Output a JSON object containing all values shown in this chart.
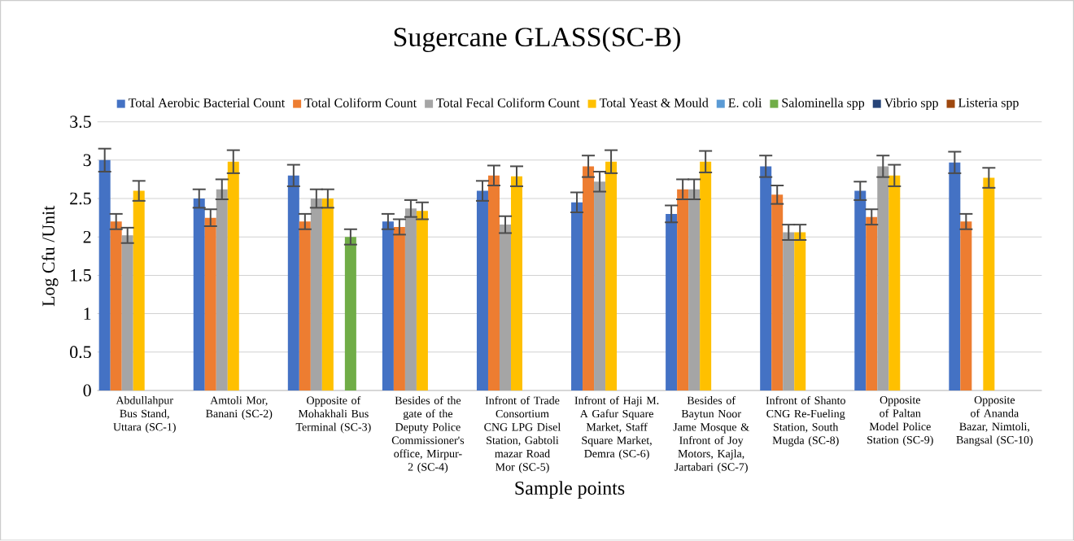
{
  "chart_data": {
    "type": "bar",
    "title": "Sugercane GLASS(SC-B)",
    "xlabel": "Sample points",
    "ylabel": "Log Cfu /Unit",
    "categories": [
      "Abdullahpur Bus Stand, Uttara (SC-1)",
      "Amtoli Mor, Banani (SC-2)",
      "Opposite of Mohakhali Bus Terminal (SC-3)",
      "Besides of the gate of the Deputy Police Commissioner's office, Mirpur-2 (SC-4)",
      "Infront of Trade Consortium CNG LPG Disel Station, Gabtoli mazar Road Mor (SC-5)",
      "Infront of Haji M. A Gafur Square Market, Staff Square Market, Demra (SC-6)",
      "Besides of Baytun Noor Jame Mosque & Infront of Joy Motors, Kajla, Jartabari (SC-7)",
      "Infront of Shanto CNG Re-Fueling Station, South Mugda (SC-8)",
      "Opposite of Paltan Model Police Station (SC-9)",
      "Opposite of Ananda Bazar, Nimtoli, Bangsal (SC-10)"
    ],
    "series": [
      {
        "name": "Total Aerobic Bacterial Count",
        "color": "#4472c4",
        "values": [
          3.0,
          2.5,
          2.8,
          2.2,
          2.6,
          2.45,
          2.3,
          2.92,
          2.6,
          2.97
        ],
        "errors": [
          0.15,
          0.12,
          0.14,
          0.1,
          0.13,
          0.13,
          0.11,
          0.14,
          0.12,
          0.14
        ]
      },
      {
        "name": "Total Coliform Count",
        "color": "#ed7d31",
        "values": [
          2.2,
          2.25,
          2.2,
          2.13,
          2.8,
          2.92,
          2.62,
          2.55,
          2.26,
          2.2
        ],
        "errors": [
          0.1,
          0.11,
          0.1,
          0.1,
          0.13,
          0.14,
          0.13,
          0.12,
          0.1,
          0.1
        ]
      },
      {
        "name": "Total Fecal Coliform Count",
        "color": "#a5a5a5",
        "values": [
          2.02,
          2.62,
          2.5,
          2.37,
          2.16,
          2.72,
          2.62,
          2.06,
          2.92,
          0
        ],
        "errors": [
          0.1,
          0.13,
          0.12,
          0.11,
          0.11,
          0.13,
          0.13,
          0.1,
          0.14,
          null
        ]
      },
      {
        "name": "Total Yeast & Mould",
        "color": "#ffc000",
        "values": [
          2.6,
          2.98,
          2.5,
          2.34,
          2.79,
          2.98,
          2.98,
          2.06,
          2.8,
          2.77
        ],
        "errors": [
          0.13,
          0.15,
          0.12,
          0.11,
          0.13,
          0.15,
          0.14,
          0.1,
          0.14,
          0.13
        ]
      },
      {
        "name": "E. coli",
        "color": "#5b9bd5",
        "values": [
          0,
          0,
          0,
          0,
          0,
          0,
          0,
          0,
          0,
          0
        ]
      },
      {
        "name": "Salominella spp",
        "color": "#70ad47",
        "values": [
          0,
          0,
          2.0,
          0,
          0,
          0,
          0,
          0,
          0,
          0
        ],
        "errors": [
          null,
          null,
          0.1,
          null,
          null,
          null,
          null,
          null,
          null,
          null
        ]
      },
      {
        "name": "Vibrio spp",
        "color": "#264478",
        "values": [
          0,
          0,
          0,
          0,
          0,
          0,
          0,
          0,
          0,
          0
        ]
      },
      {
        "name": "Listeria spp",
        "color": "#9e480e",
        "values": [
          0,
          0,
          0,
          0,
          0,
          0,
          0,
          0,
          0,
          0
        ]
      }
    ],
    "ylim": [
      0,
      3.5
    ],
    "yticks": [
      0,
      0.5,
      1,
      1.5,
      2,
      2.5,
      3,
      3.5
    ],
    "grid": "y",
    "legend": "top"
  }
}
